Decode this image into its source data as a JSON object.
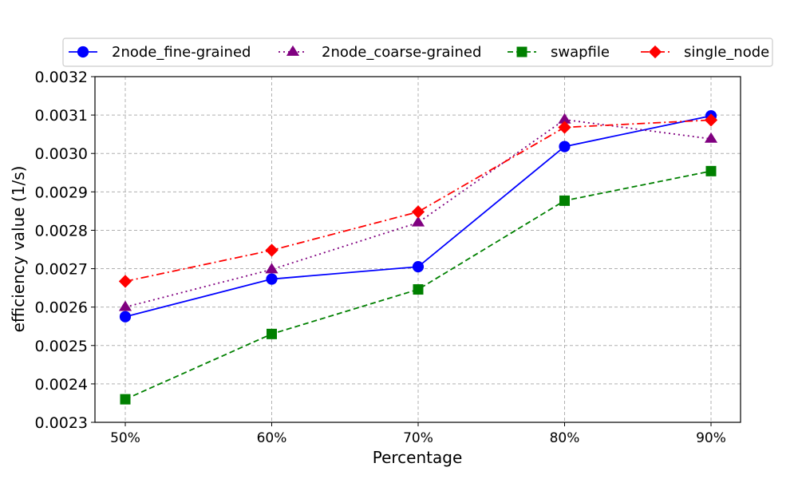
{
  "chart_data": {
    "type": "line",
    "title": "",
    "xlabel": "Percentage",
    "ylabel": "efficiency value (1/s)",
    "categories": [
      "50%",
      "60%",
      "70%",
      "80%",
      "90%"
    ],
    "ylim": [
      0.0023,
      0.0032
    ],
    "yticks": [
      "0.0023",
      "0.0024",
      "0.0025",
      "0.0026",
      "0.0027",
      "0.0028",
      "0.0029",
      "0.0030",
      "0.0031",
      "0.0032"
    ],
    "grid": true,
    "legend_position": "top, above plot",
    "series": [
      {
        "name": "2node_fine-grained",
        "values": [
          0.002575,
          0.002673,
          0.002705,
          0.003018,
          0.003098
        ],
        "color": "#0000ff",
        "line_style": "solid",
        "marker": "circle"
      },
      {
        "name": "2node_coarse-grained",
        "values": [
          0.0026,
          0.002698,
          0.00282,
          0.003088,
          0.003038
        ],
        "color": "#800080",
        "line_style": "dotted",
        "marker": "triangle"
      },
      {
        "name": "swapfile",
        "values": [
          0.00236,
          0.00253,
          0.002646,
          0.002877,
          0.002954
        ],
        "color": "#008000",
        "line_style": "dashed",
        "marker": "square"
      },
      {
        "name": "single_node",
        "values": [
          0.002667,
          0.002748,
          0.002848,
          0.003068,
          0.003087
        ],
        "color": "#ff0000",
        "line_style": "dashdot",
        "marker": "diamond"
      }
    ]
  }
}
